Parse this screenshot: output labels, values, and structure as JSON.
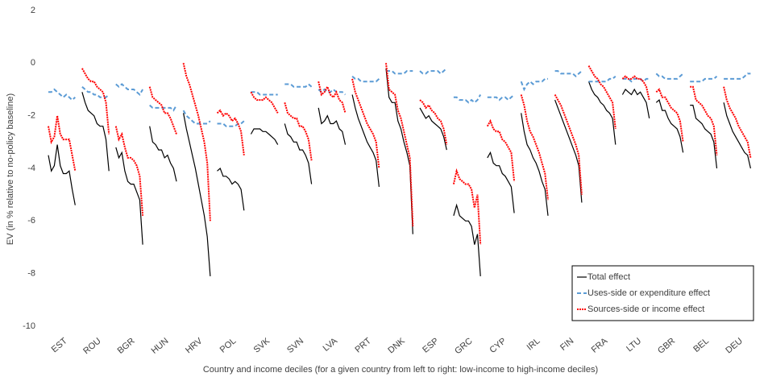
{
  "chart_data": {
    "type": "line",
    "y_label": "EV (in % relative to no-policy baseline)",
    "x_label": "Country and income deciles (for a given country from left to right: low-income to high-income deciles)",
    "categories": [
      "EST",
      "ROU",
      "BGR",
      "HUN",
      "HRV",
      "POL",
      "SVK",
      "SVN",
      "LVA",
      "PRT",
      "DNK",
      "ESP",
      "GRC",
      "CYP",
      "IRL",
      "FIN",
      "FRA",
      "LTU",
      "GBR",
      "BEL",
      "DEU"
    ],
    "ylim": [
      -10,
      2
    ],
    "yticks": [
      -10,
      -8,
      -6,
      -4,
      -2,
      0,
      2
    ],
    "legend": "bottom-right",
    "series": [
      {
        "name": "Total effect",
        "color": "#000000",
        "dash": "solid",
        "values": [
          [
            -3.5,
            -4.1,
            -3.9,
            -3.1,
            -3.9,
            -4.2,
            -4.2,
            -4.1,
            -4.8,
            -5.4
          ],
          [
            -1.1,
            -1.5,
            -1.8,
            -1.9,
            -2.0,
            -2.3,
            -2.4,
            -2.4,
            -2.9,
            -4.1
          ],
          [
            -3.2,
            -3.6,
            -3.4,
            -4.1,
            -4.5,
            -4.6,
            -4.6,
            -4.9,
            -5.2,
            -6.9
          ],
          [
            -2.4,
            -3.0,
            -3.1,
            -3.3,
            -3.3,
            -3.6,
            -3.5,
            -3.8,
            -4.0,
            -4.5
          ],
          [
            -1.9,
            -2.5,
            -3.0,
            -3.5,
            -4.0,
            -4.6,
            -5.2,
            -5.8,
            -6.6,
            -8.1
          ],
          [
            -4.1,
            -4.0,
            -4.3,
            -4.3,
            -4.4,
            -4.6,
            -4.5,
            -4.6,
            -4.8,
            -5.6
          ],
          [
            -2.7,
            -2.5,
            -2.5,
            -2.5,
            -2.6,
            -2.6,
            -2.7,
            -2.8,
            -2.9,
            -3.1
          ],
          [
            -2.3,
            -2.7,
            -2.8,
            -3.0,
            -3.0,
            -3.3,
            -3.3,
            -3.5,
            -3.8,
            -4.6
          ],
          [
            -1.7,
            -2.3,
            -2.2,
            -2.0,
            -2.3,
            -2.3,
            -2.2,
            -2.5,
            -2.6,
            -3.1
          ],
          [
            -1.2,
            -1.7,
            -2.1,
            -2.4,
            -2.7,
            -3.0,
            -3.2,
            -3.4,
            -3.7,
            -4.7
          ],
          [
            -0.2,
            -1.3,
            -1.5,
            -1.5,
            -2.2,
            -2.5,
            -3.0,
            -3.4,
            -3.9,
            -6.5
          ],
          [
            -1.7,
            -1.9,
            -2.1,
            -2.0,
            -2.2,
            -2.3,
            -2.4,
            -2.5,
            -2.8,
            -3.3
          ],
          [
            -5.8,
            -5.4,
            -5.8,
            -5.9,
            -6.0,
            -6.0,
            -6.2,
            -6.9,
            -6.5,
            -8.1
          ],
          [
            -3.6,
            -3.4,
            -3.8,
            -3.9,
            -3.9,
            -4.2,
            -4.3,
            -4.5,
            -4.7,
            -5.7
          ],
          [
            -1.9,
            -2.6,
            -3.1,
            -3.3,
            -3.6,
            -3.8,
            -4.1,
            -4.5,
            -4.8,
            -5.8
          ],
          [
            -1.4,
            -1.7,
            -2.0,
            -2.3,
            -2.6,
            -2.9,
            -3.2,
            -3.5,
            -3.9,
            -5.3
          ],
          [
            -0.7,
            -1.0,
            -1.2,
            -1.3,
            -1.5,
            -1.6,
            -1.8,
            -1.9,
            -2.1,
            -3.1
          ],
          [
            -1.2,
            -1.0,
            -1.1,
            -1.2,
            -1.0,
            -1.2,
            -1.1,
            -1.3,
            -1.5,
            -2.1
          ],
          [
            -1.5,
            -1.4,
            -1.8,
            -1.8,
            -2.1,
            -2.3,
            -2.4,
            -2.5,
            -2.8,
            -3.4
          ],
          [
            -1.6,
            -1.6,
            -2.1,
            -2.2,
            -2.3,
            -2.5,
            -2.6,
            -2.7,
            -3.0,
            -4.0
          ],
          [
            -1.5,
            -2.0,
            -2.3,
            -2.6,
            -2.8,
            -3.0,
            -3.2,
            -3.4,
            -3.5,
            -4.0
          ]
        ]
      },
      {
        "name": "Uses-side or expenditure effect",
        "color": "#5b9bd5",
        "dash": "dashed",
        "values": [
          [
            -1.1,
            -1.1,
            -1.0,
            -1.1,
            -1.2,
            -1.3,
            -1.2,
            -1.3,
            -1.4,
            -1.3
          ],
          [
            -0.9,
            -1.0,
            -1.1,
            -1.1,
            -1.2,
            -1.2,
            -1.3,
            -1.3,
            -1.3,
            -1.2
          ],
          [
            -0.8,
            -0.9,
            -0.8,
            -0.9,
            -1.0,
            -1.0,
            -1.0,
            -1.1,
            -1.2,
            -1.0
          ],
          [
            -1.6,
            -1.7,
            -1.7,
            -1.7,
            -1.7,
            -1.7,
            -1.7,
            -1.7,
            -1.8,
            -1.6
          ],
          [
            -1.8,
            -2.0,
            -2.1,
            -2.2,
            -2.3,
            -2.3,
            -2.3,
            -2.3,
            -2.3,
            -2.2
          ],
          [
            -2.3,
            -2.3,
            -2.3,
            -2.4,
            -2.4,
            -2.4,
            -2.4,
            -2.3,
            -2.3,
            -2.2
          ],
          [
            -1.1,
            -1.1,
            -1.1,
            -1.2,
            -1.2,
            -1.2,
            -1.2,
            -1.2,
            -1.2,
            -1.2
          ],
          [
            -0.8,
            -0.8,
            -0.8,
            -0.9,
            -0.9,
            -0.9,
            -0.9,
            -0.9,
            -0.8,
            -0.9
          ],
          [
            -1.0,
            -1.1,
            -1.0,
            -1.1,
            -1.1,
            -1.0,
            -1.1,
            -1.1,
            -1.1,
            -1.2
          ],
          [
            -0.5,
            -0.6,
            -0.6,
            -0.7,
            -0.7,
            -0.7,
            -0.7,
            -0.7,
            -0.7,
            -0.6
          ],
          [
            -0.3,
            -0.3,
            -0.3,
            -0.4,
            -0.4,
            -0.4,
            -0.4,
            -0.3,
            -0.3,
            -0.3
          ],
          [
            -0.3,
            -0.4,
            -0.4,
            -0.3,
            -0.3,
            -0.3,
            -0.3,
            -0.4,
            -0.3,
            -0.2
          ],
          [
            -1.3,
            -1.3,
            -1.4,
            -1.4,
            -1.4,
            -1.5,
            -1.4,
            -1.5,
            -1.4,
            -1.2
          ],
          [
            -1.3,
            -1.3,
            -1.3,
            -1.3,
            -1.4,
            -1.3,
            -1.3,
            -1.4,
            -1.3,
            -1.2
          ],
          [
            -0.7,
            -1.0,
            -0.8,
            -0.7,
            -0.8,
            -0.7,
            -0.7,
            -0.7,
            -0.6,
            -0.6
          ],
          [
            -0.3,
            -0.3,
            -0.4,
            -0.4,
            -0.4,
            -0.4,
            -0.4,
            -0.5,
            -0.4,
            -0.3
          ],
          [
            -0.7,
            -0.7,
            -0.7,
            -0.7,
            -0.7,
            -0.7,
            -0.7,
            -0.6,
            -0.6,
            -0.5
          ],
          [
            -0.6,
            -0.6,
            -0.6,
            -0.7,
            -0.6,
            -0.6,
            -0.6,
            -0.7,
            -0.6,
            -0.6
          ],
          [
            -0.4,
            -0.5,
            -0.5,
            -0.6,
            -0.6,
            -0.6,
            -0.6,
            -0.6,
            -0.5,
            -0.4
          ],
          [
            -0.7,
            -0.7,
            -0.7,
            -0.7,
            -0.7,
            -0.6,
            -0.6,
            -0.6,
            -0.6,
            -0.5
          ],
          [
            -0.6,
            -0.6,
            -0.6,
            -0.6,
            -0.6,
            -0.6,
            -0.6,
            -0.5,
            -0.4,
            -0.4
          ]
        ]
      },
      {
        "name": "Sources-side or income effect",
        "color": "#ff0000",
        "dash": "dotted",
        "values": [
          [
            -2.4,
            -3.0,
            -2.8,
            -2.0,
            -2.7,
            -2.9,
            -2.9,
            -2.9,
            -3.5,
            -4.1
          ],
          [
            -0.2,
            -0.4,
            -0.6,
            -0.7,
            -0.7,
            -0.9,
            -1.0,
            -1.1,
            -1.5,
            -2.7
          ],
          [
            -2.4,
            -2.9,
            -2.7,
            -3.2,
            -3.6,
            -3.6,
            -3.7,
            -3.9,
            -4.3,
            -5.8
          ],
          [
            -0.9,
            -1.3,
            -1.4,
            -1.5,
            -1.6,
            -1.9,
            -1.9,
            -2.1,
            -2.4,
            -2.7
          ],
          [
            0.0,
            -0.5,
            -0.8,
            -1.2,
            -1.6,
            -2.0,
            -2.5,
            -3.0,
            -3.8,
            -6.0
          ],
          [
            -1.9,
            -1.8,
            -2.0,
            -1.9,
            -2.0,
            -2.2,
            -2.1,
            -2.3,
            -2.6,
            -3.5
          ],
          [
            -1.1,
            -1.3,
            -1.4,
            -1.4,
            -1.4,
            -1.3,
            -1.4,
            -1.5,
            -1.7,
            -1.9
          ],
          [
            -1.5,
            -1.9,
            -2.0,
            -2.1,
            -2.1,
            -2.4,
            -2.4,
            -2.6,
            -2.9,
            -3.7
          ],
          [
            -0.7,
            -1.2,
            -1.1,
            -0.9,
            -1.2,
            -1.3,
            -1.1,
            -1.4,
            -1.5,
            -1.9
          ],
          [
            -0.6,
            -1.1,
            -1.4,
            -1.7,
            -2.0,
            -2.3,
            -2.5,
            -2.7,
            -3.0,
            -4.0
          ],
          [
            0.0,
            -1.0,
            -1.1,
            -1.2,
            -1.8,
            -2.1,
            -2.6,
            -3.1,
            -3.6,
            -6.2
          ],
          [
            -1.4,
            -1.5,
            -1.7,
            -1.6,
            -1.8,
            -1.9,
            -2.1,
            -2.2,
            -2.5,
            -3.1
          ],
          [
            -4.6,
            -4.1,
            -4.4,
            -4.5,
            -4.6,
            -4.6,
            -4.8,
            -5.5,
            -5.0,
            -6.9
          ],
          [
            -2.4,
            -2.2,
            -2.5,
            -2.6,
            -2.6,
            -2.9,
            -3.0,
            -3.2,
            -3.4,
            -4.5
          ],
          [
            -1.2,
            -1.6,
            -2.2,
            -2.6,
            -2.8,
            -3.1,
            -3.4,
            -3.8,
            -4.2,
            -5.2
          ],
          [
            -1.2,
            -1.4,
            -1.6,
            -1.9,
            -2.2,
            -2.5,
            -2.8,
            -3.1,
            -3.5,
            -5.0
          ],
          [
            -0.1,
            -0.3,
            -0.5,
            -0.6,
            -0.8,
            -0.9,
            -1.1,
            -1.3,
            -1.5,
            -2.5
          ],
          [
            -0.6,
            -0.5,
            -0.6,
            -0.6,
            -0.5,
            -0.6,
            -0.6,
            -0.7,
            -0.9,
            -1.4
          ],
          [
            -1.1,
            -1.0,
            -1.3,
            -1.3,
            -1.5,
            -1.7,
            -1.8,
            -1.9,
            -2.2,
            -3.0
          ],
          [
            -0.9,
            -0.9,
            -1.4,
            -1.5,
            -1.6,
            -1.8,
            -2.0,
            -2.1,
            -2.4,
            -3.5
          ],
          [
            -0.9,
            -1.4,
            -1.7,
            -1.9,
            -2.1,
            -2.4,
            -2.6,
            -2.8,
            -3.0,
            -3.6
          ]
        ]
      }
    ]
  }
}
